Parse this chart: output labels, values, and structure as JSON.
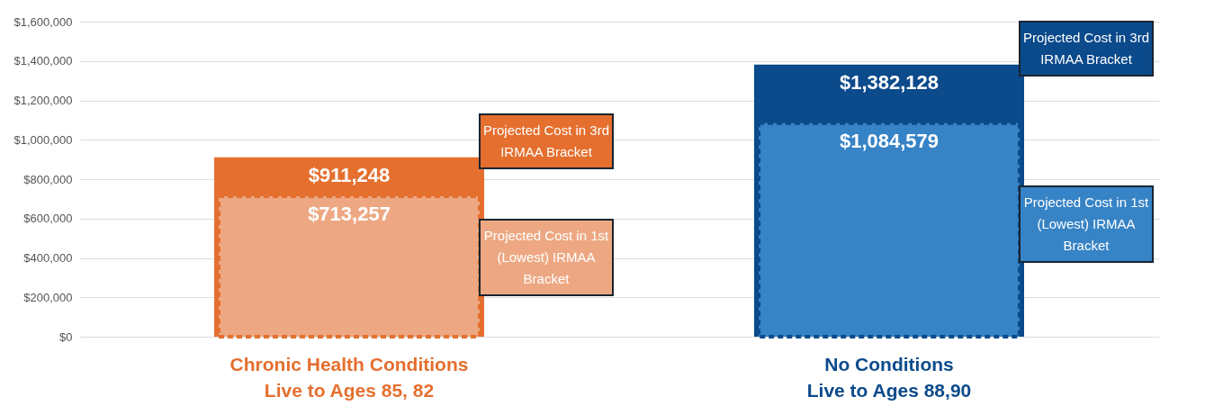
{
  "chart_data": {
    "type": "bar",
    "categories": [
      "Chronic Health Conditions\nLive to Ages 85, 82",
      "No Conditions\nLive to Ages 88,90"
    ],
    "series": [
      {
        "colors": [
          "#e56f2e",
          "#0b4a8b"
        ],
        "values": [
          911248,
          1382128
        ],
        "value_labels": [
          "$911,248",
          "$1,382,128"
        ]
      },
      {
        "colors": [
          "#eda883",
          "#3683c6"
        ],
        "values": [
          713257,
          1084579
        ],
        "value_labels": [
          "$713,257",
          "$1,084,579"
        ],
        "line_style": "dashed"
      }
    ],
    "ylim": [
      0,
      1600000
    ],
    "yticks": [
      {
        "value": 0,
        "label": "$0"
      },
      {
        "value": 200000,
        "label": "$200,000"
      },
      {
        "value": 400000,
        "label": "$400,000"
      },
      {
        "value": 600000,
        "label": "$600,000"
      },
      {
        "value": 800000,
        "label": "$800,000"
      },
      {
        "value": 1000000,
        "label": "$1,000,000"
      },
      {
        "value": 1200000,
        "label": "$1,200,000"
      },
      {
        "value": 1400000,
        "label": "$1,400,000"
      },
      {
        "value": 1600000,
        "label": "$1,600,000"
      }
    ],
    "grid": "y",
    "annotations": [
      "Projected Cost in 3rd IRMAA Bracket",
      "Projected Cost in 1st (Lowest) IRMAA Bracket",
      "Projected Cost in 3rd IRMAA Bracket",
      "Projected Cost in 1st (Lowest) IRMAA Bracket"
    ]
  }
}
